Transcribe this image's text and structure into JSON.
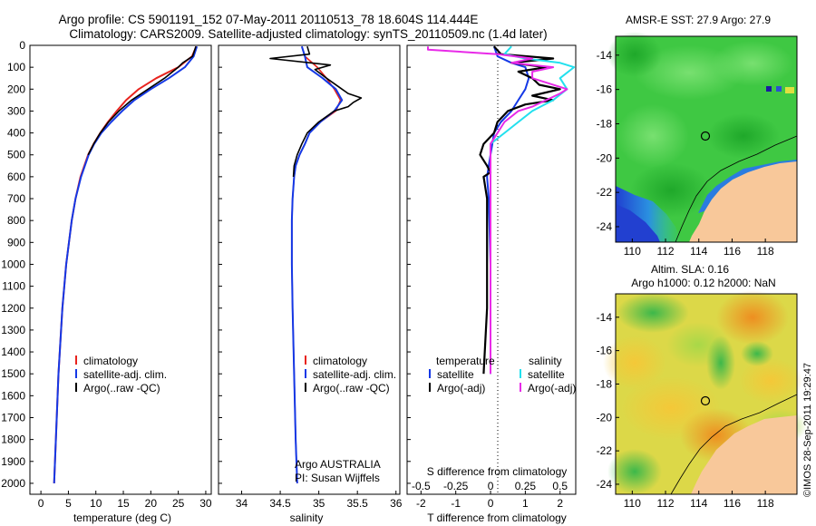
{
  "header": {
    "title_line1": "Argo profile: CS 5901191_152 07-May-2011 20110513_78 18.604S 114.444E",
    "title_line2": "Climatology: CARS2009. Satellite-adjusted climatology: synTS_20110509.nc (1.4d later)"
  },
  "colors": {
    "climatology": "#e8231e",
    "satellite": "#1438e6",
    "argo": "#000000",
    "salinity_satellite": "#22e0ee",
    "salinity_argo": "#e82ae8",
    "land": "#f8c89a"
  },
  "chart_data": [
    {
      "type": "line",
      "name": "temperature-profile",
      "xlabel": "temperature (deg C)",
      "ylabel": "",
      "xlim": [
        -2,
        31
      ],
      "ylim": [
        2050,
        0
      ],
      "xticks": [
        "0",
        "5",
        "10",
        "15",
        "20",
        "25",
        "30"
      ],
      "yticks": [
        "0",
        "100",
        "200",
        "300",
        "400",
        "500",
        "600",
        "700",
        "800",
        "900",
        "1000",
        "1100",
        "1200",
        "1300",
        "1400",
        "1500",
        "1600",
        "1700",
        "1800",
        "1900",
        "2000"
      ],
      "legend": [
        "climatology",
        "satellite-adj. clim.",
        "Argo(..raw -QC)"
      ],
      "series": [
        {
          "name": "climatology",
          "depth": [
            5,
            50,
            100,
            150,
            200,
            250,
            300,
            350,
            400,
            450,
            500,
            600,
            700,
            800,
            1000,
            1200,
            1500,
            2000
          ],
          "values": [
            28.3,
            27.5,
            25.0,
            21.0,
            17.8,
            15.5,
            13.8,
            12.2,
            10.8,
            9.6,
            8.6,
            7.2,
            6.3,
            5.6,
            4.6,
            3.9,
            3.2,
            2.4
          ]
        },
        {
          "name": "satellite-adj. clim.",
          "depth": [
            5,
            50,
            100,
            150,
            200,
            250,
            300,
            350,
            400,
            450,
            500,
            600,
            700,
            800,
            1000,
            1200,
            1500,
            2000
          ],
          "values": [
            28.4,
            27.8,
            26.2,
            23.3,
            20.0,
            17.0,
            14.8,
            12.8,
            11.0,
            9.7,
            8.7,
            7.3,
            6.3,
            5.6,
            4.6,
            3.9,
            3.2,
            2.4
          ]
        },
        {
          "name": "Argo(..raw -QC)",
          "depth": [
            5,
            50,
            80,
            100,
            150,
            200,
            250,
            300,
            350,
            400,
            450,
            500
          ],
          "values": [
            28.2,
            27.6,
            25.8,
            25.0,
            22.5,
            19.5,
            16.5,
            14.2,
            12.3,
            10.8,
            9.6,
            8.6
          ]
        }
      ]
    },
    {
      "type": "line",
      "name": "salinity-profile",
      "xlabel": "salinity",
      "xlim": [
        33.7,
        36.05
      ],
      "ylim": [
        2050,
        0
      ],
      "xticks": [
        "34",
        "34.5",
        "35",
        "35.5",
        "36"
      ],
      "legend": [
        "climatology",
        "satellite-adj. clim.",
        "Argo(..raw -QC)"
      ],
      "series": [
        {
          "name": "climatology",
          "depth": [
            5,
            50,
            100,
            150,
            200,
            250,
            300,
            350,
            400,
            450,
            500,
            550,
            600,
            700,
            800,
            1000,
            1200,
            1500,
            1800,
            2000
          ],
          "values": [
            34.78,
            34.82,
            34.98,
            35.1,
            35.2,
            35.28,
            35.22,
            35.02,
            34.88,
            34.82,
            34.75,
            34.7,
            34.68,
            34.66,
            34.65,
            34.65,
            34.66,
            34.68,
            34.7,
            34.72
          ]
        },
        {
          "name": "satellite-adj. clim.",
          "depth": [
            5,
            50,
            100,
            150,
            200,
            250,
            300,
            350,
            400,
            450,
            500,
            550,
            600,
            700,
            800,
            1000,
            1200,
            1500,
            1800,
            2000
          ],
          "values": [
            34.78,
            34.82,
            34.85,
            35.05,
            35.22,
            35.3,
            35.2,
            35.02,
            34.88,
            34.82,
            34.75,
            34.7,
            34.68,
            34.66,
            34.65,
            34.65,
            34.66,
            34.68,
            34.7,
            34.72
          ]
        },
        {
          "name": "Argo(..raw -QC)",
          "depth": [
            5,
            40,
            60,
            90,
            110,
            150,
            200,
            220,
            240,
            260,
            280,
            300,
            350,
            400,
            450,
            500,
            550,
            600
          ],
          "values": [
            34.85,
            34.88,
            34.37,
            35.15,
            34.95,
            35.1,
            35.3,
            35.38,
            35.55,
            35.45,
            35.38,
            35.2,
            35.0,
            34.85,
            34.78,
            34.72,
            34.68,
            34.67
          ]
        }
      ],
      "annotation_line1": "Argo AUSTRALIA",
      "annotation_line2": "PI: Susan Wijffels"
    },
    {
      "type": "line",
      "name": "difference-profile",
      "xlabel": "T difference from climatology",
      "xlabel_top": "S difference from climatology",
      "xlim": [
        -2.4,
        2.45
      ],
      "ylim": [
        2050,
        0
      ],
      "xticks": [
        "-2",
        "-1",
        "0",
        "1",
        "2"
      ],
      "s_ticks": [
        "-0.5",
        "-0.25",
        "0",
        "0.25",
        "0.5"
      ],
      "legend_temperature": {
        "title": "temperature",
        "items": [
          "satellite",
          "Argo(-adj)"
        ]
      },
      "legend_salinity": {
        "title": "salinity",
        "items": [
          "satellite",
          "Argo(-adj)"
        ]
      },
      "series": [
        {
          "name": "T satellite",
          "depth": [
            5,
            50,
            80,
            100,
            150,
            200,
            250,
            300,
            350,
            400,
            450,
            500,
            550,
            600,
            700,
            1000,
            1500
          ],
          "values": [
            0.1,
            0.2,
            0.6,
            1.0,
            1.1,
            1.0,
            0.8,
            0.6,
            0.3,
            0.1,
            0.05,
            0.0,
            -0.05,
            -0.1,
            -0.05,
            0.0,
            0.0
          ]
        },
        {
          "name": "T Argo(-adj)",
          "depth": [
            5,
            40,
            60,
            80,
            100,
            120,
            150,
            180,
            200,
            230,
            250,
            270,
            300,
            350,
            400,
            450,
            500,
            550,
            580,
            600,
            700,
            800,
            1000,
            1200,
            1500
          ],
          "values": [
            0.1,
            0.3,
            1.8,
            0.6,
            1.6,
            0.8,
            1.2,
            1.4,
            2.0,
            1.2,
            1.8,
            1.0,
            0.5,
            0.2,
            0.1,
            -0.2,
            -0.3,
            -0.1,
            0.0,
            -0.2,
            -0.1,
            -0.1,
            -0.1,
            -0.1,
            -0.2
          ]
        },
        {
          "name": "S satellite",
          "depth": [
            5,
            40,
            60,
            80,
            100,
            150,
            200,
            250,
            300,
            350,
            400,
            450,
            500,
            600,
            800,
            1000,
            1500
          ],
          "values": [
            0.15,
            0.1,
            0.25,
            0.5,
            0.6,
            0.5,
            0.55,
            0.45,
            0.3,
            0.2,
            0.1,
            0.0,
            0.0,
            0.0,
            0.0,
            0.0,
            0.0
          ]
        },
        {
          "name": "S Argo(-adj)",
          "depth": [
            5,
            20,
            40,
            60,
            80,
            100,
            120,
            150,
            200,
            220,
            250,
            280,
            300,
            350,
            400,
            450,
            500,
            1500
          ],
          "values": [
            -0.45,
            -0.45,
            0.05,
            0.3,
            0.15,
            0.45,
            0.3,
            0.3,
            0.55,
            0.5,
            0.4,
            0.3,
            0.2,
            0.1,
            0.05,
            0.0,
            0.0,
            0.0
          ]
        }
      ]
    }
  ],
  "maps": {
    "sst": {
      "title": "AMSR-E SST: 27.9 Argo: 27.9",
      "xticks": [
        "110",
        "112",
        "114",
        "116",
        "118"
      ],
      "yticks": [
        "-14",
        "-16",
        "-18",
        "-20",
        "-22",
        "-24"
      ]
    },
    "sla": {
      "title_line1": "Altim. SLA: 0.16",
      "title_line2": "Argo h1000: 0.12 h2000: NaN",
      "xticks": [
        "110",
        "112",
        "114",
        "116",
        "118"
      ],
      "yticks": [
        "-14",
        "-16",
        "-18",
        "-20",
        "-22",
        "-24"
      ]
    }
  },
  "credit": "©IMOS 28-Sep-2011 19:29:47"
}
